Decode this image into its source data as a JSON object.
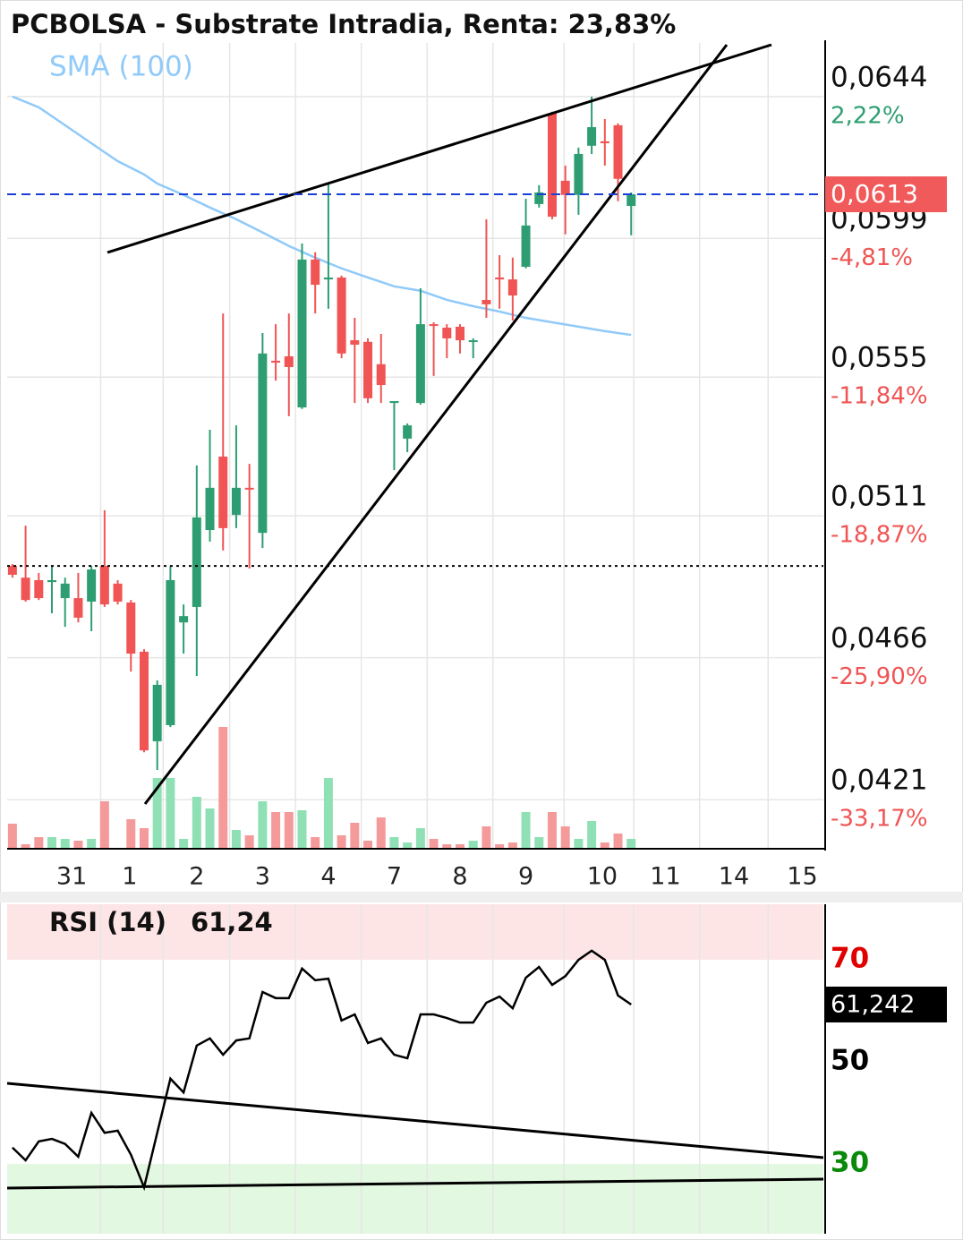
{
  "chart_data": [
    {
      "type": "candlestick",
      "title": "PCBOLSA - Substrate Intradia, Renta: 23,83%",
      "indicator": "SMA (100)",
      "indicator_color": "#90caf9",
      "up_color": "#2e9e72",
      "down_color": "#f05454",
      "volume_up_color": "#8fe0b5",
      "volume_down_color": "#f59a9a",
      "open": [
        0.04951,
        0.04914,
        0.04906,
        0.049,
        0.04849,
        0.04849,
        0.04838,
        0.04951,
        0.04895,
        0.04835,
        0.04679,
        0.04395,
        0.04446,
        0.04772,
        0.04821,
        0.05065,
        0.05298,
        0.05113,
        0.05199,
        0.05056,
        0.05602,
        0.05616,
        0.05454,
        0.05923,
        0.0586,
        0.05866,
        0.05667,
        0.05662,
        0.05591,
        0.05468,
        0.05355,
        0.05468,
        0.05718,
        0.05707,
        0.0571,
        0.05662,
        0.05795,
        0.05866,
        0.0586,
        0.059,
        0.06099,
        0.06386,
        0.06173,
        0.06128,
        0.06284,
        0.06298,
        0.06349,
        0.06093
      ],
      "high": [
        0.04957,
        0.05079,
        0.04929,
        0.04951,
        0.04914,
        0.04929,
        0.04951,
        0.05128,
        0.04906,
        0.04843,
        0.04687,
        0.04588,
        0.04951,
        0.04829,
        0.0527,
        0.05383,
        0.05752,
        0.05397,
        0.05275,
        0.0569,
        0.05718,
        0.05752,
        0.05974,
        0.05946,
        0.06164,
        0.05872,
        0.05738,
        0.05673,
        0.05687,
        0.05474,
        0.05403,
        0.05832,
        0.05724,
        0.05718,
        0.05718,
        0.05673,
        0.06051,
        0.05937,
        0.05929,
        0.06116,
        0.06159,
        0.06392,
        0.06221,
        0.06278,
        0.0644,
        0.06369,
        0.06355,
        0.06136
      ],
      "low": [
        0.04914,
        0.04838,
        0.04843,
        0.04801,
        0.04758,
        0.04772,
        0.04744,
        0.04821,
        0.04829,
        0.04616,
        0.0436,
        0.04304,
        0.0444,
        0.04673,
        0.04602,
        0.05028,
        0.05,
        0.05071,
        0.04943,
        0.05008,
        0.05539,
        0.05426,
        0.05449,
        0.05752,
        0.05767,
        0.0561,
        0.05468,
        0.05468,
        0.05468,
        0.05255,
        0.05312,
        0.05463,
        0.05554,
        0.0561,
        0.05625,
        0.0561,
        0.05738,
        0.05767,
        0.0573,
        0.05895,
        0.06088,
        0.06051,
        0.06003,
        0.06065,
        0.06258,
        0.06221,
        0.06108,
        0.06
      ],
      "close": [
        0.04923,
        0.04843,
        0.04849,
        0.04906,
        0.04895,
        0.04787,
        0.0494,
        0.04829,
        0.04838,
        0.04673,
        0.04366,
        0.04574,
        0.04906,
        0.04792,
        0.05105,
        0.05199,
        0.05071,
        0.05199,
        0.05196,
        0.05625,
        0.05596,
        0.05582,
        0.05923,
        0.05843,
        0.05866,
        0.05625,
        0.05653,
        0.05483,
        0.05525,
        0.05474,
        0.05397,
        0.05718,
        0.05713,
        0.05673,
        0.05667,
        0.05667,
        0.05781,
        0.0586,
        0.05809,
        0.06031,
        0.06136,
        0.06059,
        0.06128,
        0.06258,
        0.06343,
        0.06292,
        0.06179,
        0.0613
      ],
      "volume": [
        27,
        4,
        12,
        12,
        10,
        8,
        10,
        52,
        0,
        32,
        22,
        78,
        78,
        10,
        57,
        44,
        135,
        20,
        14,
        52,
        40,
        40,
        42,
        12,
        78,
        14,
        28,
        8,
        34,
        12,
        6,
        22,
        10,
        4,
        4,
        8,
        24,
        4,
        6,
        40,
        12,
        40,
        24,
        10,
        30,
        6,
        16,
        10
      ],
      "sma_x": [
        0,
        2,
        4,
        6,
        8,
        10,
        11,
        13,
        15,
        17,
        19,
        21,
        23,
        25,
        27,
        29,
        31,
        33,
        35,
        37,
        39,
        41,
        43,
        45,
        47
      ],
      "sma": [
        0.0644,
        0.06406,
        0.06349,
        0.06292,
        0.06235,
        0.06193,
        0.06164,
        0.06128,
        0.06088,
        0.06051,
        0.06009,
        0.05966,
        0.05929,
        0.05895,
        0.05866,
        0.05838,
        0.05824,
        0.05795,
        0.05775,
        0.05758,
        0.05738,
        0.05724,
        0.0571,
        0.05696,
        0.05684
      ],
      "last_price": {
        "value": 0.0613,
        "label": "0,0613"
      },
      "last_price_color": "#f05a5a",
      "last_line_color": "#1a3fd6",
      "reference_line": 0.04951,
      "xlim": [
        -0.4,
        61.6
      ],
      "ylim": [
        0.04054,
        0.0661
      ],
      "xticks": [
        {
          "value": 4.5,
          "label": "31"
        },
        {
          "value": 8.9,
          "label": "1"
        },
        {
          "value": 14,
          "label": "2"
        },
        {
          "value": 19,
          "label": "3"
        },
        {
          "value": 24,
          "label": "4"
        },
        {
          "value": 29,
          "label": "7"
        },
        {
          "value": 34,
          "label": "8"
        },
        {
          "value": 39,
          "label": "9"
        },
        {
          "value": 44.8,
          "label": "10"
        },
        {
          "value": 49.6,
          "label": "11"
        },
        {
          "value": 54.8,
          "label": "14"
        },
        {
          "value": 60,
          "label": "15"
        }
      ],
      "yticks": [
        {
          "value": 0.0644,
          "label": "0,0644"
        },
        {
          "value": 0.0599,
          "label": "0,0599"
        },
        {
          "value": 0.0555,
          "label": "0,0555"
        },
        {
          "value": 0.0511,
          "label": "0,0511"
        },
        {
          "value": 0.0466,
          "label": "0,0466"
        },
        {
          "value": 0.0421,
          "label": "0,0421"
        }
      ],
      "ytick_changes": [
        {
          "label": "2,22%",
          "color": "#2e9e72"
        },
        {
          "label": "-4,81%",
          "color": "#f05454"
        },
        {
          "label": "-11,84%",
          "color": "#f05454"
        },
        {
          "label": "-18,87%",
          "color": "#f05454"
        },
        {
          "label": "-25,90%",
          "color": "#f05454"
        },
        {
          "label": "-33,17%",
          "color": "#f05454"
        }
      ],
      "grid": true
    },
    {
      "type": "line",
      "title": "RSI (14)",
      "value_label": "61,24",
      "last_label": "61,242",
      "color": "#000000",
      "values": [
        33.2,
        30.7,
        34.4,
        34.9,
        33.9,
        31.4,
        40.0,
        36.1,
        36.5,
        31.8,
        25.4,
        36.1,
        46.7,
        44.0,
        53.2,
        54.6,
        51.4,
        54.2,
        54.6,
        63.7,
        62.5,
        62.5,
        68.3,
        66.0,
        66.3,
        58.1,
        59.3,
        53.7,
        54.6,
        51.4,
        50.7,
        59.3,
        59.3,
        58.6,
        57.7,
        57.7,
        61.6,
        62.8,
        60.5,
        66.5,
        68.6,
        65.1,
        66.8,
        70.0,
        71.8,
        70.0,
        63.0,
        61.24
      ],
      "ylim": [
        16.3,
        80.9
      ],
      "yticks": [
        70,
        50,
        30
      ],
      "ytick_colors": [
        "#e00000",
        "#000000",
        "#0a8a0a"
      ],
      "upper_band_color": "#fde5e5",
      "lower_band_color": "#e3f8e0",
      "grid": true
    }
  ]
}
